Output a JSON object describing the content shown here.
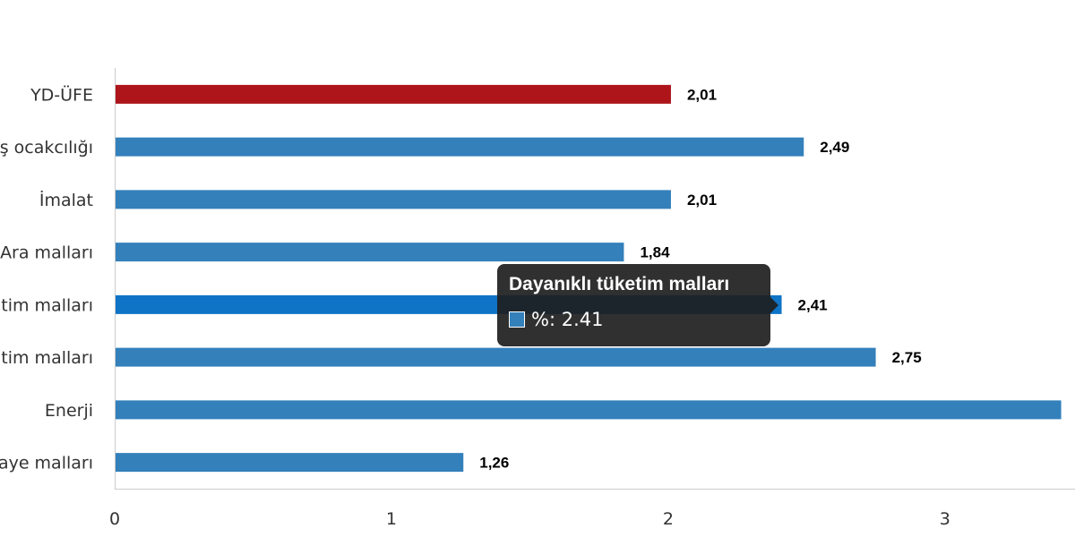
{
  "chart_data": {
    "type": "bar",
    "orientation": "horizontal",
    "categories": [
      "YD-ÜFE",
      "ş ocakcılığı",
      "İmalat",
      "Ara malları",
      "tim malları",
      "tim malları",
      "Enerji",
      "aye malları"
    ],
    "values": [
      2.01,
      2.49,
      2.01,
      1.84,
      2.41,
      2.75,
      3.42,
      1.26
    ],
    "value_labels": [
      "2,01",
      "2,49",
      "2,01",
      "1,84",
      "2,41",
      "2,75",
      "",
      "1,26"
    ],
    "xlim": [
      0,
      3.47
    ],
    "x_ticks": [
      "0",
      "1",
      "2",
      "3"
    ],
    "grid": false,
    "colors": {
      "highlight": "#AD151B",
      "bar": "#3380BB",
      "hover": "#0F74C6",
      "axis": "#cccccc"
    },
    "highlight_index": 0,
    "hover_index": 4
  },
  "tooltip": {
    "title": "Dayanıklı tüketim malları",
    "row": "%: 2.41"
  }
}
